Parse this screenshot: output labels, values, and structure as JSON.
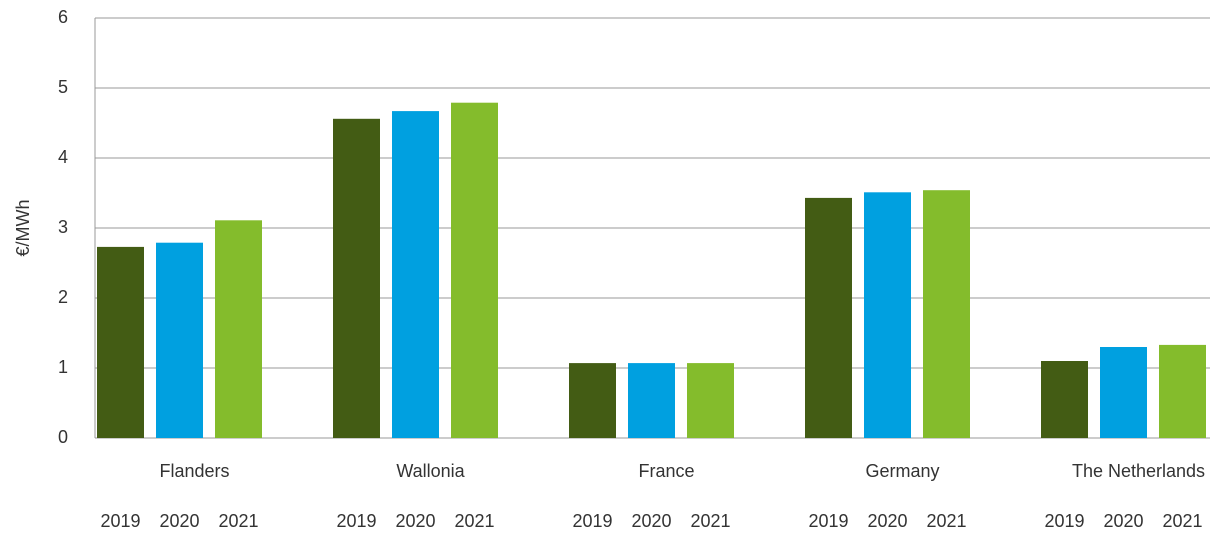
{
  "chart_data": {
    "type": "bar",
    "y_label": "€/MWh",
    "categories": [
      "Flanders",
      "Wallonia",
      "France",
      "Germany",
      "The Netherlands"
    ],
    "series": [
      {
        "name": "2019",
        "color": "#435c14",
        "values": [
          2.73,
          4.56,
          1.07,
          3.43,
          1.1
        ]
      },
      {
        "name": "2020",
        "color": "#00a0e0",
        "values": [
          2.79,
          4.67,
          1.07,
          3.51,
          1.3
        ]
      },
      {
        "name": "2021",
        "color": "#84bc2c",
        "values": [
          3.11,
          4.79,
          1.07,
          3.54,
          1.33
        ]
      }
    ],
    "ylim": [
      0,
      6
    ],
    "yticks": [
      0,
      1,
      2,
      3,
      4,
      5,
      6
    ],
    "grid": true
  }
}
